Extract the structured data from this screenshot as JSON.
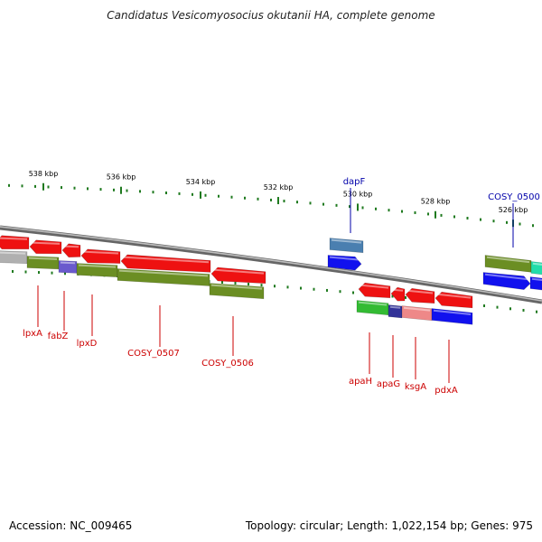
{
  "title": "Candidatus Vesicomyosocius okutanii HA, complete genome",
  "footer": {
    "accession": "Accession: NC_009465",
    "summary": "Topology: circular; Length: 1,022,154 bp; Genes: 975"
  },
  "colors": {
    "backbone": "#8a8a8a",
    "tick": "#1f7a1f",
    "label_red": "#cc0000",
    "label_blue": "#0000aa",
    "red_gene": "#ee1111",
    "olive_gene": "#6b8e23",
    "blue_gene": "#1111ee",
    "purple_gene": "#6a5acd",
    "steel_gene": "#4a7fb0",
    "green_gene": "#33bb33",
    "pink_gene": "#ee8888",
    "gray_gene": "#b0b0b0",
    "teal_gene": "#22ddaa",
    "navy_gene": "#333399"
  },
  "ticks": [
    {
      "label": "538 kbp"
    },
    {
      "label": "536 kbp"
    },
    {
      "label": "534 kbp"
    },
    {
      "label": "532 kbp"
    },
    {
      "label": "530 kbp"
    },
    {
      "label": "528 kbp"
    },
    {
      "label": "526 kbp"
    }
  ],
  "gene_labels": [
    {
      "text": "lpxA",
      "color": "red"
    },
    {
      "text": "fabZ",
      "color": "red"
    },
    {
      "text": "lpxD",
      "color": "red"
    },
    {
      "text": "COSY_0507",
      "color": "red"
    },
    {
      "text": "COSY_0506",
      "color": "red"
    },
    {
      "text": "dapF",
      "color": "blue"
    },
    {
      "text": "COSY_0500",
      "color": "blue"
    },
    {
      "text": "apaH",
      "color": "red"
    },
    {
      "text": "apaG",
      "color": "red"
    },
    {
      "text": "ksgA",
      "color": "red"
    },
    {
      "text": "pdxA",
      "color": "red"
    }
  ]
}
